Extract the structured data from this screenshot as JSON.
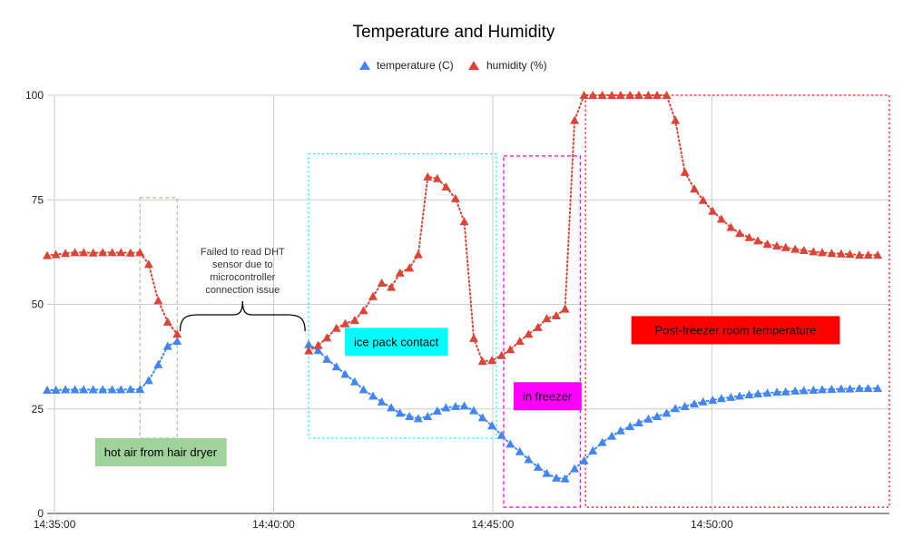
{
  "colors": {
    "temperature": "#4285f4",
    "humidity": "#db4437",
    "grid": "#cccccc",
    "hair_dryer": "#9fd39a",
    "ice_pack": "#00ffff",
    "freezer": "#ff00ff",
    "post_freezer": "#ff0000"
  },
  "chart_data": {
    "type": "line",
    "title": "Temperature and Humidity",
    "legend_position": "top",
    "grid": true,
    "xlim": [
      "14:34:50",
      "14:54:03"
    ],
    "ylim": [
      0,
      100
    ],
    "x_ticks": [
      "14:35:00",
      "14:40:00",
      "14:45:00",
      "14:50:00"
    ],
    "y_ticks": [
      "0",
      "25",
      "50",
      "75",
      "100"
    ],
    "line_style": "dotted",
    "marker": "triangle",
    "series": [
      {
        "name": "temperature (C)",
        "color": "#4285f4",
        "segments": [
          {
            "x": [
              "14:34:50",
              "14:35:02",
              "14:35:15",
              "14:35:28",
              "14:35:40",
              "14:35:53",
              "14:36:06",
              "14:36:19",
              "14:36:31",
              "14:36:44",
              "14:36:57",
              "14:37:09",
              "14:37:22",
              "14:37:35",
              "14:37:48"
            ],
            "y": [
              29.5,
              29.5,
              29.6,
              29.6,
              29.6,
              29.6,
              29.6,
              29.6,
              29.6,
              29.7,
              29.7,
              31.8,
              35.6,
              40.0,
              41.2
            ]
          },
          {
            "x": [
              "14:40:48",
              "14:41:01",
              "14:41:13",
              "14:41:26",
              "14:41:38",
              "14:41:51",
              "14:42:03",
              "14:42:16",
              "14:42:28",
              "14:42:41",
              "14:42:53",
              "14:43:06",
              "14:43:18",
              "14:43:31",
              "14:43:44",
              "14:43:56",
              "14:44:09",
              "14:44:21",
              "14:44:34",
              "14:44:46",
              "14:44:59",
              "14:45:12",
              "14:45:24",
              "14:45:37",
              "14:45:49",
              "14:46:02",
              "14:46:14",
              "14:46:27",
              "14:46:39",
              "14:46:52",
              "14:47:05",
              "14:47:17",
              "14:47:30",
              "14:47:43",
              "14:47:55",
              "14:48:08",
              "14:48:20",
              "14:48:33",
              "14:48:45",
              "14:48:58",
              "14:49:10",
              "14:49:23",
              "14:49:36",
              "14:49:48",
              "14:50:01",
              "14:50:13",
              "14:50:26",
              "14:50:38",
              "14:50:51",
              "14:51:03",
              "14:51:16",
              "14:51:29",
              "14:51:41",
              "14:51:54",
              "14:52:06",
              "14:52:19",
              "14:52:31",
              "14:52:44",
              "14:52:57",
              "14:53:09",
              "14:53:22",
              "14:53:34",
              "14:53:47"
            ],
            "y": [
              40.4,
              39.0,
              36.9,
              35.1,
              33.3,
              31.5,
              29.6,
              28.1,
              26.7,
              25.3,
              24.0,
              23.2,
              22.7,
              23.2,
              24.5,
              25.3,
              25.6,
              25.7,
              24.6,
              22.9,
              21.0,
              18.7,
              16.6,
              14.8,
              12.9,
              11.1,
              9.6,
              8.5,
              8.3,
              10.7,
              12.6,
              15.0,
              17.0,
              18.5,
              19.8,
              20.8,
              21.7,
              22.6,
              23.2,
              24.0,
              25.1,
              25.6,
              26.2,
              26.7,
              27.1,
              27.5,
              27.8,
              28.1,
              28.4,
              28.6,
              28.8,
              29.0,
              29.1,
              29.3,
              29.4,
              29.5,
              29.6,
              29.7,
              29.8,
              29.8,
              29.9,
              29.9,
              29.9
            ]
          }
        ]
      },
      {
        "name": "humidity (%)",
        "color": "#db4437",
        "segments": [
          {
            "x": [
              "14:34:50",
              "14:35:02",
              "14:35:15",
              "14:35:28",
              "14:35:40",
              "14:35:53",
              "14:36:06",
              "14:36:19",
              "14:36:31",
              "14:36:44",
              "14:36:57",
              "14:37:09",
              "14:37:22",
              "14:37:35",
              "14:37:48"
            ],
            "y": [
              61.7,
              61.9,
              62.2,
              62.4,
              62.4,
              62.3,
              62.4,
              62.4,
              62.4,
              62.3,
              62.4,
              59.6,
              50.9,
              45.8,
              42.9
            ]
          },
          {
            "x": [
              "14:40:48",
              "14:41:01",
              "14:41:13",
              "14:41:26",
              "14:41:38",
              "14:41:51",
              "14:42:03",
              "14:42:16",
              "14:42:28",
              "14:42:41",
              "14:42:53",
              "14:43:06",
              "14:43:18",
              "14:43:31",
              "14:43:44",
              "14:43:56",
              "14:44:09",
              "14:44:21",
              "14:44:34",
              "14:44:46",
              "14:44:59",
              "14:45:12",
              "14:45:24",
              "14:45:37",
              "14:45:49",
              "14:46:02",
              "14:46:14",
              "14:46:27",
              "14:46:39",
              "14:46:52",
              "14:47:05",
              "14:47:17",
              "14:47:30",
              "14:47:43",
              "14:47:55",
              "14:48:08",
              "14:48:20",
              "14:48:33",
              "14:48:45",
              "14:48:58",
              "14:49:10",
              "14:49:23",
              "14:49:36",
              "14:49:48",
              "14:50:01",
              "14:50:13",
              "14:50:26",
              "14:50:38",
              "14:50:51",
              "14:51:03",
              "14:51:16",
              "14:51:29",
              "14:51:41",
              "14:51:54",
              "14:52:06",
              "14:52:19",
              "14:52:31",
              "14:52:44",
              "14:52:57",
              "14:53:09",
              "14:53:22",
              "14:53:34",
              "14:53:47"
            ],
            "y": [
              38.9,
              40.2,
              42.0,
              44.3,
              45.4,
              46.2,
              48.5,
              51.9,
              55.1,
              54.1,
              57.5,
              58.7,
              61.9,
              80.5,
              80.1,
              78.1,
              75.3,
              69.8,
              41.9,
              36.4,
              36.6,
              37.8,
              39.2,
              41.2,
              42.9,
              44.5,
              46.6,
              47.3,
              48.9,
              94.0,
              100.0,
              100.0,
              100.0,
              100.0,
              100.0,
              100.0,
              100.0,
              100.0,
              100.0,
              100.0,
              94.0,
              81.6,
              77.6,
              74.9,
              72.3,
              70.4,
              68.4,
              67.0,
              66.0,
              65.2,
              64.4,
              64.0,
              63.6,
              63.2,
              62.9,
              62.6,
              62.4,
              62.2,
              62.1,
              62.0,
              61.8,
              61.8,
              61.8
            ]
          }
        ]
      }
    ],
    "annotations": [
      {
        "text": "hot air from hair dryer",
        "box_color": "#9fd39a",
        "box_x": [
          "14:36:57",
          "14:37:48"
        ],
        "box_y": [
          18,
          75.5
        ],
        "label_x": "14:36:08",
        "label_y": 14.4,
        "box_style": "dashed"
      },
      {
        "text_lines": [
          "Failed to read DHT",
          "sensor due to",
          "microcontroller",
          "connection issue"
        ],
        "brace_x": [
          "14:37:52",
          "14:40:43"
        ],
        "brace_y": 47.5
      },
      {
        "text": "ice pack contact",
        "box_color": "#00ffff",
        "box_x": [
          "14:40:48",
          "14:45:05"
        ],
        "box_y": [
          18,
          86
        ],
        "label_x": "14:41:50",
        "label_y": 40.8,
        "box_style": "dotted"
      },
      {
        "text": "in freezer",
        "box_color": "#ff00ff",
        "box_x": [
          "14:45:15",
          "14:47:00"
        ],
        "box_y": [
          1.5,
          85.5
        ],
        "label_x": "14:45:41",
        "label_y": 27.8,
        "box_style": "dashed"
      },
      {
        "text": "Post-freezer room temperature",
        "box_color": "#ff0000",
        "box_x": [
          "14:47:07",
          "14:54:03"
        ],
        "box_y": [
          1.5,
          100
        ],
        "label_x": "14:48:42",
        "label_y": 43.6,
        "box_style": "dotted"
      }
    ]
  }
}
